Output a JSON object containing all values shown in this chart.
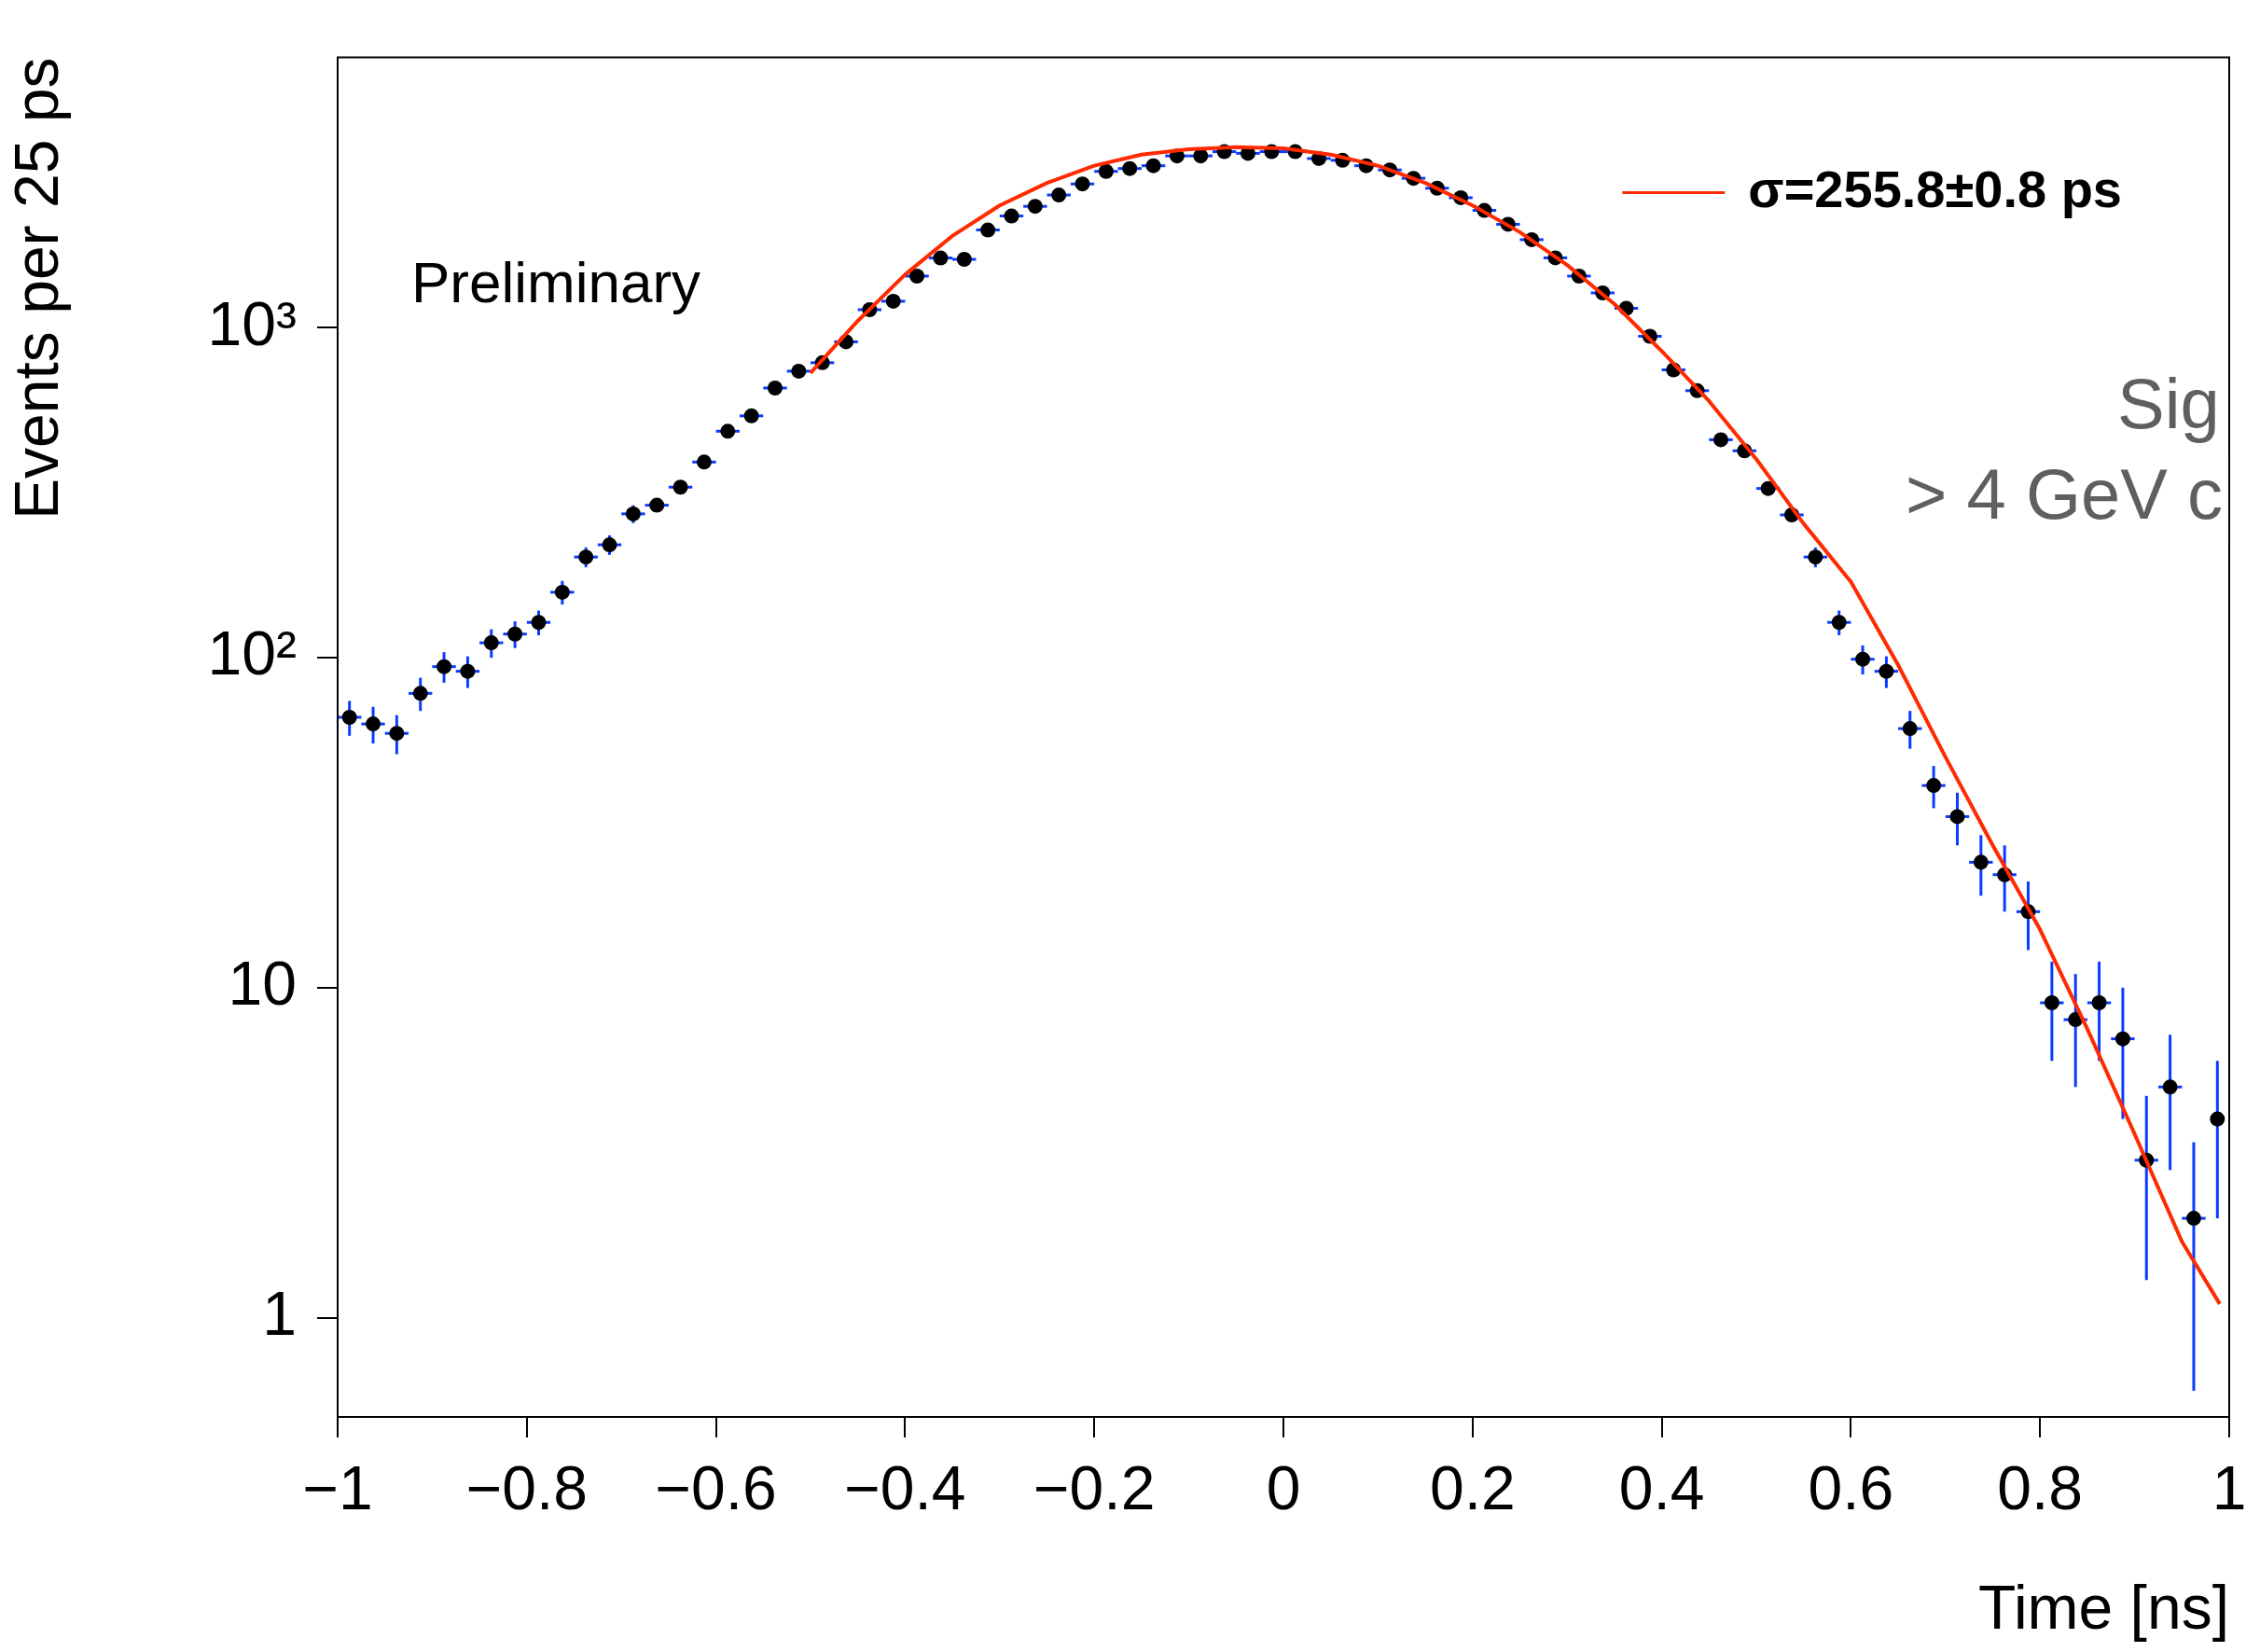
{
  "chart_data": {
    "type": "scatter",
    "xlabel": "Time [ns]",
    "ylabel": "Events per 25 ps",
    "log": "y",
    "legend": "top right",
    "marker": "circle",
    "xlim": [
      -1,
      1
    ],
    "ylim": [
      0.5,
      6600
    ],
    "xticks": [
      {
        "value": -1,
        "label": "−1"
      },
      {
        "value": -0.8,
        "label": "−0.8"
      },
      {
        "value": -0.6,
        "label": "−0.6"
      },
      {
        "value": -0.4,
        "label": "−0.4"
      },
      {
        "value": -0.2,
        "label": "−0.2"
      },
      0,
      0.2,
      0.4,
      0.6,
      0.8,
      1
    ],
    "yticks": [
      1,
      10,
      {
        "value": 100,
        "label": "10²"
      },
      {
        "value": 1000,
        "label": "10³"
      }
    ],
    "annotations": [
      "Preliminary",
      "Sig",
      "> 4 GeV c"
    ],
    "series": [
      {
        "color": "#000000",
        "x": [
          -0.9875,
          -0.9625,
          -0.9375,
          -0.9125,
          -0.8875,
          -0.8625,
          -0.8375,
          -0.8125,
          -0.7875,
          -0.7625,
          -0.7375,
          -0.7125,
          -0.6875,
          -0.6625,
          -0.6375,
          -0.6125,
          -0.5875,
          -0.5625,
          -0.5375,
          -0.5125,
          -0.4875,
          -0.4625,
          -0.4375,
          -0.4125,
          -0.3875,
          -0.3625,
          -0.3375,
          -0.3125,
          -0.2875,
          -0.2625,
          -0.2375,
          -0.2125,
          -0.1875,
          -0.1625,
          -0.1375,
          -0.1125,
          -0.0875,
          -0.0625,
          -0.0375,
          -0.0125,
          0.0125,
          0.0375,
          0.0625,
          0.0875,
          0.1125,
          0.1375,
          0.1625,
          0.1875,
          0.2125,
          0.2375,
          0.2625,
          0.2875,
          0.3125,
          0.3375,
          0.3625,
          0.3875,
          0.4125,
          0.4375,
          0.4625,
          0.4875,
          0.5125,
          0.5375,
          0.5625,
          0.5875,
          0.6125,
          0.6375,
          0.6625,
          0.6875,
          0.7125,
          0.7375,
          0.7625,
          0.7875,
          0.8125,
          0.8375,
          0.8625,
          0.8875,
          0.9125,
          0.9375,
          0.9625,
          0.9875
        ],
        "values": [
          66,
          63,
          59,
          78,
          94,
          91,
          111,
          118,
          128,
          158,
          202,
          220,
          273,
          290,
          329,
          392,
          486,
          541,
          657,
          739,
          784,
          907,
          1135,
          1204,
          1435,
          1628,
          1613,
          1980,
          2183,
          2335,
          2527,
          2730,
          2980,
          3040,
          3100,
          3320,
          3320,
          3420,
          3380,
          3420,
          3420,
          3260,
          3220,
          3100,
          3010,
          2840,
          2650,
          2480,
          2270,
          2060,
          1850,
          1630,
          1435,
          1276,
          1146,
          943,
          746,
          645,
          458,
          424,
          326,
          271,
          202,
          128,
          99,
          91,
          61,
          41,
          33,
          24,
          22,
          17,
          9,
          8,
          9,
          7,
          3,
          5,
          2,
          4
        ],
        "errors": [
          8,
          8,
          8,
          9,
          10,
          10,
          11,
          11,
          11,
          13,
          14,
          15,
          17,
          null,
          null,
          null,
          null,
          null,
          null,
          27,
          28,
          30,
          34,
          35,
          38,
          40,
          40,
          44,
          47,
          48,
          50,
          52,
          55,
          55,
          56,
          58,
          58,
          58,
          58,
          58,
          58,
          57,
          57,
          56,
          55,
          53,
          51,
          50,
          48,
          45,
          43,
          40,
          38,
          36,
          34,
          31,
          27,
          null,
          null,
          null,
          null,
          null,
          14,
          11,
          10,
          10,
          8,
          6,
          6,
          5,
          5,
          4,
          3,
          3,
          3,
          3,
          [
            1.3,
            4.7
          ],
          [
            2.8,
            7.2
          ],
          [
            0.6,
            3.4
          ],
          [
            2,
            6
          ]
        ],
        "xerrors": [
          0.0125,
          0.0125,
          0.0125,
          0.0125,
          0.0125,
          0.0125,
          0.0125,
          0.0125,
          0.0125,
          0.0125,
          0.0125,
          0.0125,
          0.0125,
          0.0125,
          0.0125,
          0.0125,
          0.0125,
          0.0125,
          0.0125,
          0.0125,
          0.0125,
          0.0125,
          0.0125,
          0.0125,
          0.0125,
          0.0125,
          0.0125,
          0.0125,
          0.0125,
          0.0125,
          0.0125,
          0.0125,
          0.0125,
          0.0125,
          0.0125,
          0.0125,
          0.0125,
          0.0125,
          0.0125,
          0.0125,
          0.0125,
          0.0125,
          0.0125,
          0.0125,
          0.0125,
          0.0125,
          0.0125,
          0.0125,
          0.0125,
          0.0125,
          0.0125,
          0.0125,
          0.0125,
          0.0125,
          0.0125,
          0.0125,
          0.0125,
          0.0125,
          0.0125,
          0.0125,
          0.0125,
          0.0125,
          0.0125,
          0.0125,
          0.0125,
          0.0125,
          0.0125,
          0.0125,
          0.0125,
          0.0125,
          0.0125,
          0.0125,
          0.0125,
          0.0125,
          0.0125,
          0.0125,
          0.0125,
          0.0125,
          0.0125,
          null
        ]
      },
      {
        "name": "σ=255.8±0.8 ps",
        "type": "line",
        "color": "#ff2a00",
        "marker": "none",
        "line_style": "solid",
        "x": [
          -0.5,
          -0.45,
          -0.4,
          -0.35,
          -0.3,
          -0.25,
          -0.2,
          -0.15,
          -0.1,
          -0.05,
          0,
          0.05,
          0.1,
          0.15,
          0.2,
          0.25,
          0.3,
          0.35,
          0.4,
          0.45,
          0.5,
          0.55,
          0.6,
          0.65,
          0.7,
          0.75,
          0.8,
          0.85,
          0.9,
          0.95,
          0.99
        ],
        "values": [
          730,
          1050,
          1450,
          1900,
          2350,
          2750,
          3100,
          3350,
          3480,
          3530,
          3500,
          3350,
          3100,
          2750,
          2350,
          1950,
          1550,
          1180,
          850,
          600,
          400,
          255,
          170,
          95,
          50,
          27,
          15,
          7.5,
          3.6,
          1.7,
          1.1
        ]
      }
    ]
  }
}
